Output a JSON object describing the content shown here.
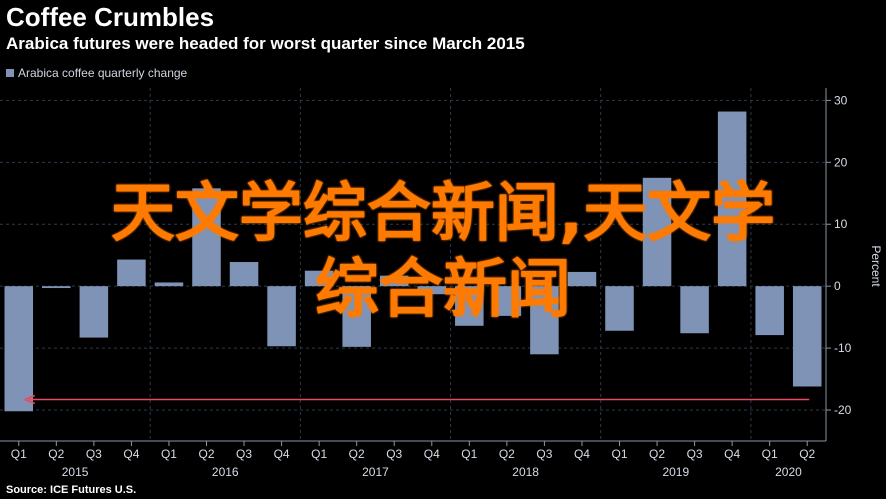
{
  "header": {
    "title": "Coffee Crumbles",
    "subtitle": "Arabica futures were headed for worst quarter since March 2015"
  },
  "legend": {
    "label": "Arabica coffee quarterly change",
    "color": "#7f93b6"
  },
  "source": "Source: ICE Futures U.S.",
  "overlay": {
    "line1": "天文学综合新闻,天文学",
    "line2": "综合新闻"
  },
  "colors": {
    "background": "#000000",
    "bar": "#7f93b6",
    "grid": "#2d3a4d",
    "arrow": "#e84a5f",
    "axis_text": "#d6dce6"
  },
  "chart_data": {
    "type": "bar",
    "categories": [
      "Q1 2015",
      "Q2 2015",
      "Q3 2015",
      "Q4 2015",
      "Q1 2016",
      "Q2 2016",
      "Q3 2016",
      "Q4 2016",
      "Q1 2017",
      "Q2 2017",
      "Q3 2017",
      "Q4 2017",
      "Q1 2018",
      "Q2 2018",
      "Q3 2018",
      "Q4 2018",
      "Q1 2019",
      "Q2 2019",
      "Q3 2019",
      "Q4 2019",
      "Q1 2020",
      "Q2 2020"
    ],
    "quarter_labels": [
      "Q1",
      "Q2",
      "Q3",
      "Q4",
      "Q1",
      "Q2",
      "Q3",
      "Q4",
      "Q1",
      "Q2",
      "Q3",
      "Q4",
      "Q1",
      "Q2",
      "Q3",
      "Q4",
      "Q1",
      "Q2",
      "Q3",
      "Q4",
      "Q1",
      "Q2"
    ],
    "year_labels": [
      {
        "label": "2015",
        "start": 0,
        "end": 3
      },
      {
        "label": "2016",
        "start": 4,
        "end": 7
      },
      {
        "label": "2017",
        "start": 8,
        "end": 11
      },
      {
        "label": "2018",
        "start": 12,
        "end": 15
      },
      {
        "label": "2019",
        "start": 16,
        "end": 19
      },
      {
        "label": "2020",
        "start": 20,
        "end": 21
      }
    ],
    "series": [
      {
        "name": "Arabica coffee quarterly change",
        "values": [
          -20.2,
          -0.3,
          -8.3,
          4.3,
          0.6,
          15.8,
          3.9,
          -9.7,
          2.5,
          -9.8,
          1.7,
          -1.3,
          -6.4,
          -4.8,
          -11.0,
          2.3,
          -7.2,
          17.5,
          -7.6,
          28.2,
          -7.9,
          -16.2
        ]
      }
    ],
    "ylabel": "Percent",
    "ylim": [
      -25,
      32
    ],
    "yticks": [
      30,
      20,
      10,
      0,
      -10,
      -20
    ],
    "y_axis_position": "right",
    "grid": true,
    "legend_position": "top-left",
    "annotation": {
      "type": "arrow",
      "from_index": 21,
      "to_index": 0,
      "value": -18.3
    }
  }
}
